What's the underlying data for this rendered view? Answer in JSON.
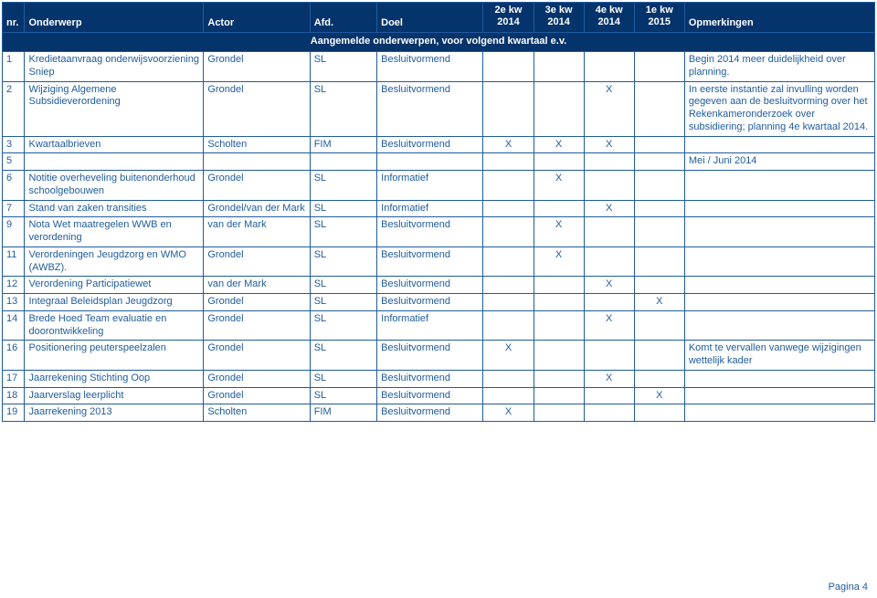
{
  "header": {
    "nr": "nr.",
    "onderwerp": "Onderwerp",
    "actor": "Actor",
    "afd": "Afd.",
    "doel": "Doel",
    "q2_top": "2e kw",
    "q2_bot": "2014",
    "q3_top": "3e kw",
    "q3_bot": "2014",
    "q4_top": "4e kw",
    "q4_bot": "2014",
    "q1_top": "1e kw",
    "q1_bot": "2015",
    "opm": "Opmerkingen"
  },
  "banner": "Aangemelde onderwerpen, voor volgend kwartaal e.v.",
  "rows": [
    {
      "nr": "1",
      "onderwerp": "Kredietaanvraag onderwijsvoorziening Sniep",
      "actor": "Grondel",
      "afd": "SL",
      "doel": "Besluitvormend",
      "q2": "",
      "q3": "",
      "q4": "",
      "q1": "",
      "opm": "Begin 2014 meer duidelijkheid over planning."
    },
    {
      "nr": "2",
      "onderwerp": "Wijziging Algemene Subsidieverordening",
      "actor": "Grondel",
      "afd": "SL",
      "doel": "Besluitvormend",
      "q2": "",
      "q3": "",
      "q4": "X",
      "q1": "",
      "opm": "In eerste instantie zal invulling worden gegeven aan de besluitvorming over het Rekenkameronderzoek over subsidiering; planning 4e kwartaal 2014."
    },
    {
      "nr": "3",
      "onderwerp": "Kwartaalbrieven",
      "actor": "Scholten",
      "afd": "FIM",
      "doel": "Besluitvormend",
      "q2": "X",
      "q3": "X",
      "q4": "X",
      "q1": "",
      "opm": ""
    },
    {
      "nr": "5",
      "onderwerp": "",
      "actor": "",
      "afd": "",
      "doel": "",
      "q2": "",
      "q3": "",
      "q4": "",
      "q1": "",
      "opm": "Mei / Juni 2014"
    },
    {
      "nr": "6",
      "onderwerp": "Notitie overheveling buitenonderhoud schoolgebouwen",
      "actor": "Grondel",
      "afd": "SL",
      "doel": "Informatief",
      "q2": "",
      "q3": "X",
      "q4": "",
      "q1": "",
      "opm": ""
    },
    {
      "nr": "7",
      "onderwerp": "Stand van zaken transities",
      "actor": "Grondel/van der Mark",
      "afd": "SL",
      "doel": "Informatief",
      "q2": "",
      "q3": "",
      "q4": "X",
      "q1": "",
      "opm": ""
    },
    {
      "nr": "9",
      "onderwerp": "Nota Wet maatregelen WWB en verordening",
      "actor": "van der Mark",
      "afd": "SL",
      "doel": "Besluitvormend",
      "q2": "",
      "q3": "X",
      "q4": "",
      "q1": "",
      "opm": ""
    },
    {
      "nr": "11",
      "onderwerp": "Verordeningen Jeugdzorg en WMO (AWBZ).",
      "actor": "Grondel",
      "afd": "SL",
      "doel": "Besluitvormend",
      "q2": "",
      "q3": "X",
      "q4": "",
      "q1": "",
      "opm": ""
    },
    {
      "nr": "12",
      "onderwerp": "Verordening Participatiewet",
      "actor": "van der Mark",
      "afd": "SL",
      "doel": "Besluitvormend",
      "q2": "",
      "q3": "",
      "q4": "X",
      "q1": "",
      "opm": ""
    },
    {
      "nr": "13",
      "onderwerp": "Integraal Beleidsplan Jeugdzorg",
      "actor": "Grondel",
      "afd": "SL",
      "doel": "Besluitvormend",
      "q2": "",
      "q3": "",
      "q4": "",
      "q1": "X",
      "opm": ""
    },
    {
      "nr": "14",
      "onderwerp": "Brede Hoed Team evaluatie en doorontwikkeling",
      "actor": "Grondel",
      "afd": "SL",
      "doel": "Informatief",
      "q2": "",
      "q3": "",
      "q4": "X",
      "q1": "",
      "opm": ""
    },
    {
      "nr": "16",
      "onderwerp": "Positionering peuterspeelzalen",
      "actor": "Grondel",
      "afd": "SL",
      "doel": "Besluitvormend",
      "q2": "X",
      "q3": "",
      "q4": "",
      "q1": "",
      "opm": "Komt te vervallen vanwege wijzigingen wettelijk kader"
    },
    {
      "nr": "17",
      "onderwerp": "Jaarrekening Stichting Oop",
      "actor": "Grondel",
      "afd": "SL",
      "doel": "Besluitvormend",
      "q2": "",
      "q3": "",
      "q4": "X",
      "q1": "",
      "opm": ""
    },
    {
      "nr": "18",
      "onderwerp": "Jaarverslag leerplicht",
      "actor": "Grondel",
      "afd": "SL",
      "doel": "Besluitvormend",
      "q2": "",
      "q3": "",
      "q4": "",
      "q1": "X",
      "opm": ""
    },
    {
      "nr": "19",
      "onderwerp": "Jaarrekening 2013",
      "actor": "Scholten",
      "afd": "FIM",
      "doel": "Besluitvormend",
      "q2": "X",
      "q3": "",
      "q4": "",
      "q1": "",
      "opm": ""
    }
  ],
  "footer": "Pagina 4"
}
